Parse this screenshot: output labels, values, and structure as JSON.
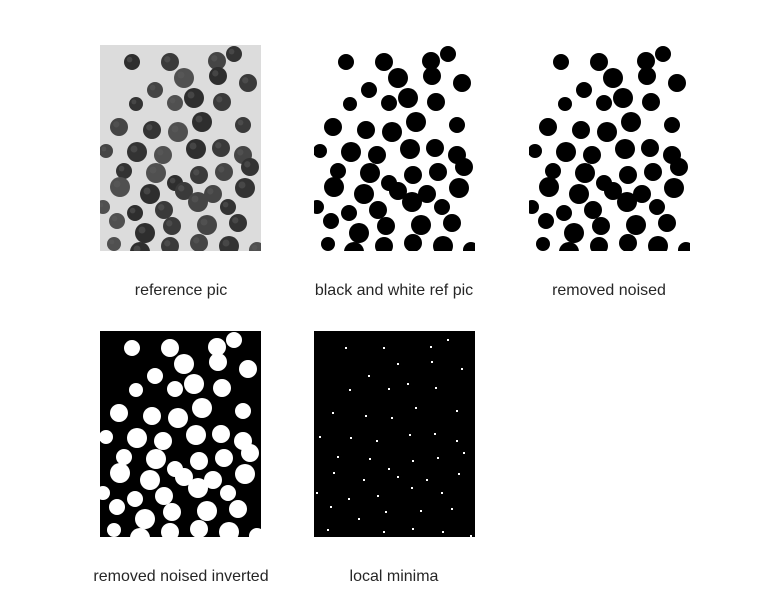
{
  "figure": {
    "panels": [
      {
        "id": "reference",
        "caption": "reference pic",
        "style": "grayscale"
      },
      {
        "id": "bw",
        "caption": "black and white ref pic",
        "style": "binary"
      },
      {
        "id": "denoised",
        "caption": "removed noised",
        "style": "binary"
      },
      {
        "id": "inverted",
        "caption": "removed noised inverted",
        "style": "inverted"
      },
      {
        "id": "minima",
        "caption": "local minima",
        "style": "points"
      }
    ]
  },
  "colors": {
    "background": "#ffffff",
    "caption_text": "#262626",
    "reference_paper": "#dcdcdc",
    "reference_dark": "#3a3a3a",
    "binary_fg": "#000000",
    "binary_bg": "#ffffff"
  }
}
